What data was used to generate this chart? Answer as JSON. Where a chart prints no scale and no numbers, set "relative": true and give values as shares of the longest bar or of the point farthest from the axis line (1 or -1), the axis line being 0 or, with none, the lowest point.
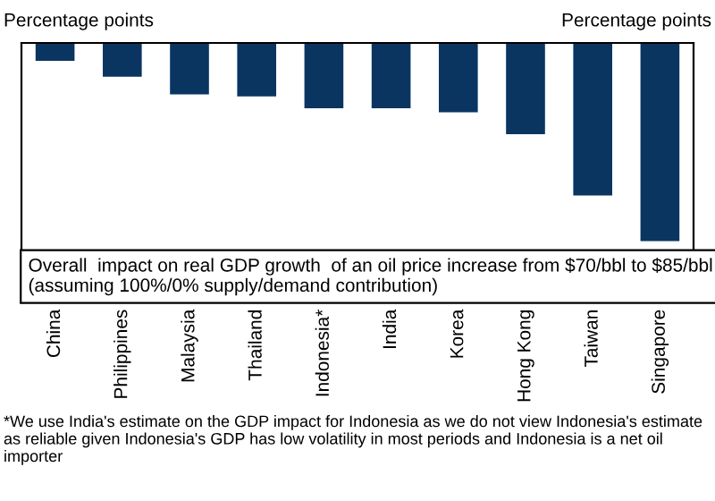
{
  "chart_data": {
    "type": "bar",
    "ylabel": "Percentage points",
    "y2label": "Percentage points",
    "categories": [
      "China",
      "Philippines",
      "Malaysia",
      "Thailand",
      "Indonesia*",
      "India",
      "Korea",
      "Hong Kong",
      "Taiwan",
      "Singapore"
    ],
    "values": [
      -0.09,
      -0.17,
      -0.26,
      -0.27,
      -0.33,
      -0.33,
      -0.35,
      -0.46,
      -0.77,
      -1
    ],
    "color": "#0b3561",
    "relative": true,
    "tick_labels": "x",
    "annotations": [
      "Overall  impact on real GDP growth  of an oil price increase from $70/bbl to $85/bbl (assuming 100%/0% supply/demand contribution)",
      "*We use India's estimate on the GDP impact for Indonesia as we do not view Indonesia's estimate as reliable given Indonesia's GDP has low volatility in most periods and Indonesia is a net oil importer"
    ]
  }
}
